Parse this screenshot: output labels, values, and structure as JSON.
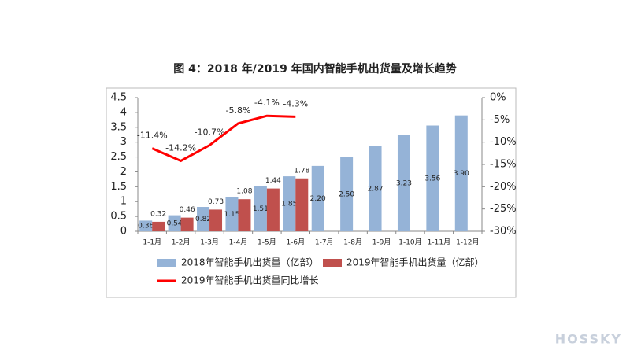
{
  "chart_data": {
    "type": "bar",
    "title": "图 4：2018 年/2019 年国内智能手机出货量及增长趋势",
    "categories": [
      "1-1月",
      "1-2月",
      "1-3月",
      "1-4月",
      "1-5月",
      "1-6月",
      "1-7月",
      "1-8月",
      "1-9月",
      "1-10月",
      "1-11月",
      "1-12月"
    ],
    "series": [
      {
        "name": "2018年智能手机出货量（亿部）",
        "color": "#95b3d7",
        "type": "bar",
        "values": [
          0.36,
          0.54,
          0.82,
          1.15,
          1.51,
          1.85,
          2.2,
          2.5,
          2.87,
          3.23,
          3.56,
          3.9
        ],
        "value_labels": [
          "0.36",
          "0.54",
          "0.82",
          "1.15",
          "1.51",
          "1.85",
          "2.20",
          "2.50",
          "2.87",
          "3.23",
          "3.56",
          "3.90"
        ]
      },
      {
        "name": "2019年智能手机出货量（亿部）",
        "color": "#c0504d",
        "type": "bar",
        "values": [
          0.32,
          0.46,
          0.73,
          1.08,
          1.44,
          1.78,
          null,
          null,
          null,
          null,
          null,
          null
        ],
        "value_labels": [
          "0.32",
          "0.46",
          "0.73",
          "1.08",
          "1.44",
          "1.78",
          null,
          null,
          null,
          null,
          null,
          null
        ]
      },
      {
        "name": "2019年智能手机出货量同比增长",
        "color": "#ff0000",
        "type": "line",
        "axis": "y2",
        "values": [
          -11.4,
          -14.2,
          -10.7,
          -5.8,
          -4.1,
          -4.3,
          null,
          null,
          null,
          null,
          null,
          null
        ],
        "value_labels": [
          "-11.4%",
          "-14.2%",
          "-10.7%",
          "-5.8%",
          "-4.1%",
          "-4.3%",
          null,
          null,
          null,
          null,
          null,
          null
        ]
      }
    ],
    "ylim": [
      0,
      4.5
    ],
    "yticks": [
      0,
      0.5,
      1,
      1.5,
      2,
      2.5,
      3,
      3.5,
      4,
      4.5
    ],
    "y2lim": [
      -30,
      0
    ],
    "y2ticks": [
      {
        "value": 0,
        "label": "0%"
      },
      {
        "value": -5,
        "label": "-5%"
      },
      {
        "value": -10,
        "label": "-10%"
      },
      {
        "value": -15,
        "label": "-15%"
      },
      {
        "value": -20,
        "label": "-20%"
      },
      {
        "value": -25,
        "label": "-25%"
      },
      {
        "value": -30,
        "label": "-30%"
      }
    ],
    "watermark": "HOSSKY"
  }
}
